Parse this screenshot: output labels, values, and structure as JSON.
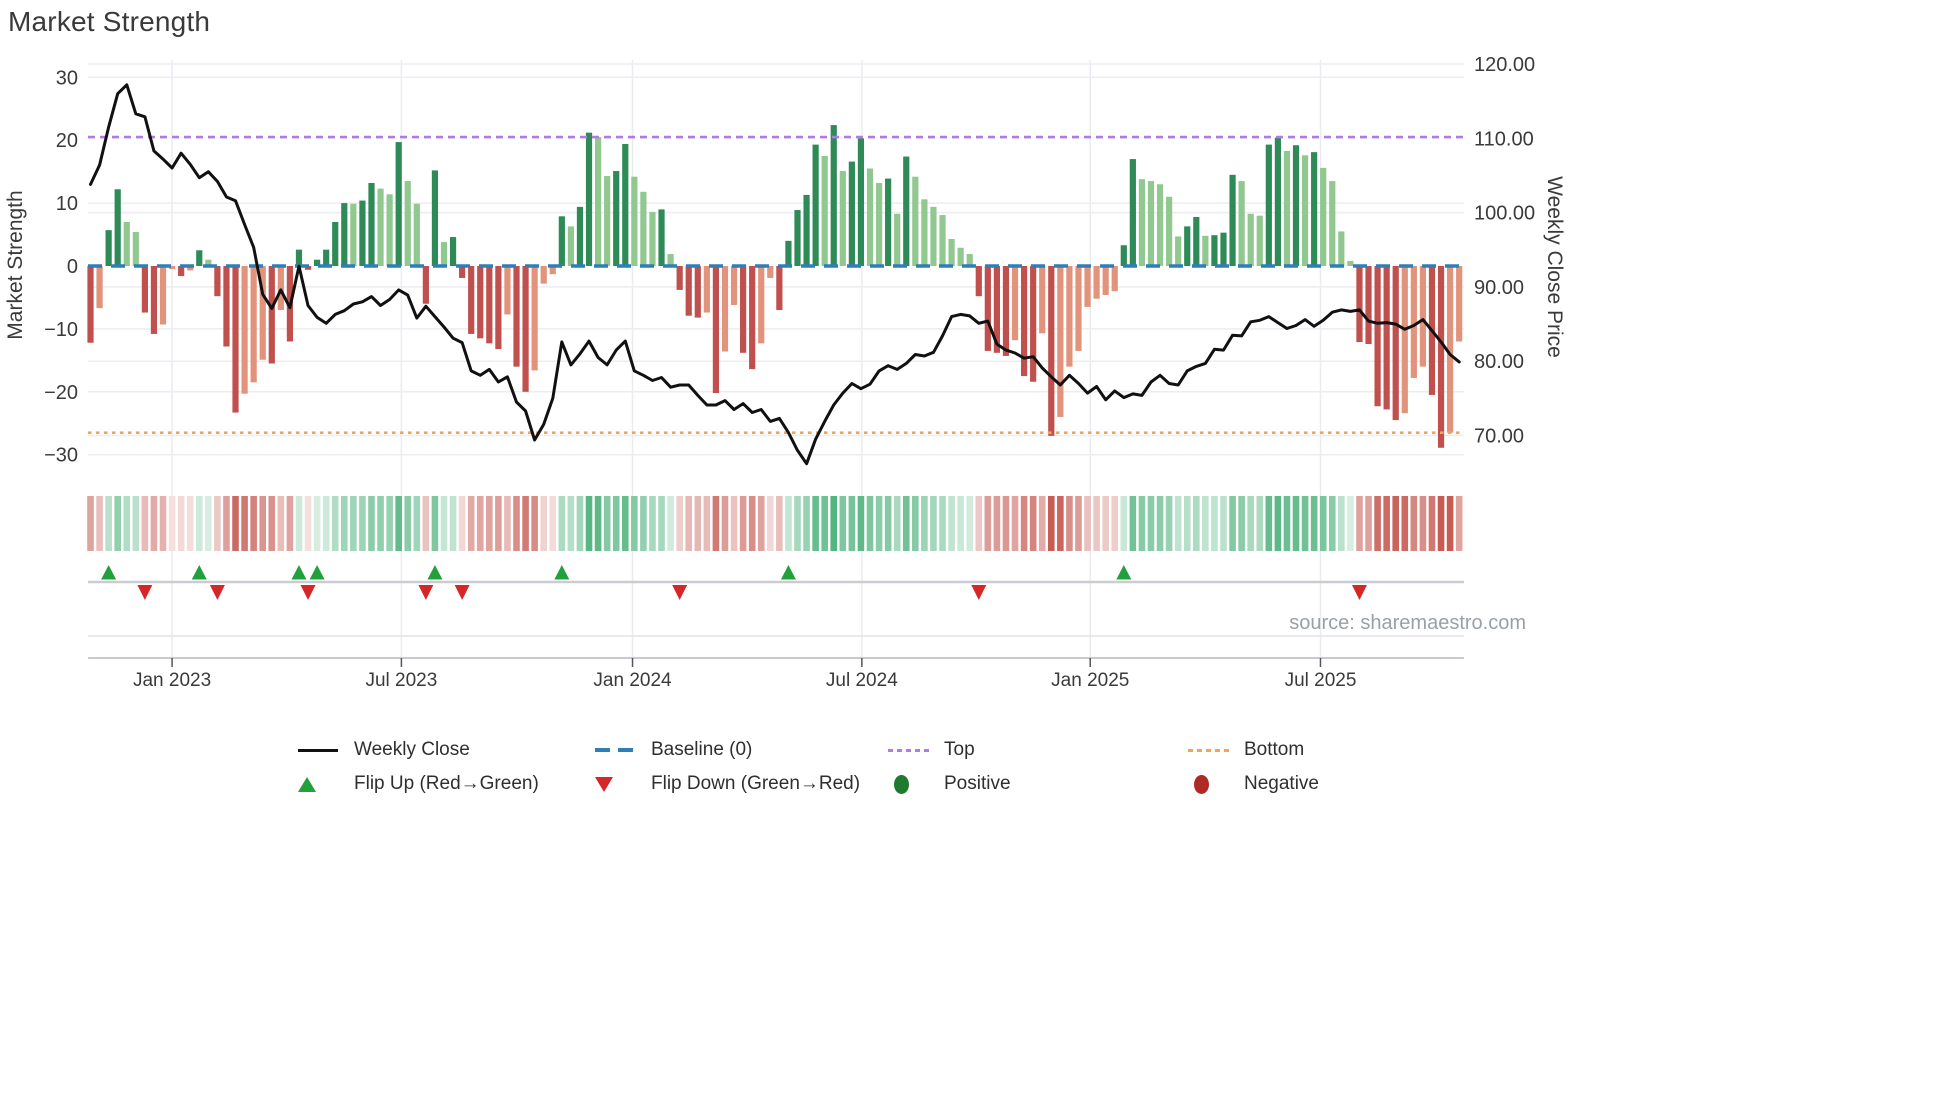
{
  "page": {
    "title": "Market Strength",
    "source": "source: sharemaestro.com"
  },
  "axes": {
    "left_label": "Market Strength",
    "right_label": "Weekly Close Price",
    "left_ticks": [
      "30",
      "20",
      "10",
      "0",
      "−10",
      "−20",
      "−30"
    ],
    "left_tick_values": [
      30,
      20,
      10,
      0,
      -10,
      -20,
      -30
    ],
    "right_ticks": [
      "120.00",
      "110.00",
      "100.00",
      "90.00",
      "80.00",
      "70.00"
    ],
    "right_tick_values": [
      120,
      110,
      100,
      90,
      80,
      70
    ],
    "x_ticks": [
      {
        "label": "Jan 2023",
        "week": 9
      },
      {
        "label": "Jul 2023",
        "week": 34.3
      },
      {
        "label": "Jan 2024",
        "week": 59.8
      },
      {
        "label": "Jul 2024",
        "week": 85.1
      },
      {
        "label": "Jan 2025",
        "week": 110.3
      },
      {
        "label": "Jul 2025",
        "week": 135.7
      }
    ]
  },
  "chart_data": {
    "type": "bar+line",
    "title": "Market Strength",
    "ylabel_left": "Market Strength",
    "ylabel_right": "Weekly Close Price",
    "ylim_left": [
      -32.5,
      32.5
    ],
    "ylim_right": [
      65.5,
      120.5
    ],
    "baseline": 0,
    "top_line": 20.5,
    "bottom_line": -26.5,
    "legend_position": "bottom",
    "grid": true,
    "strength": [
      -12.2,
      -6.7,
      5.7,
      12.2,
      7.0,
      5.4,
      -7.4,
      -10.8,
      -9.3,
      -0.5,
      -1.6,
      -0.7,
      2.5,
      1.0,
      -4.8,
      -12.8,
      -23.3,
      -20.3,
      -18.5,
      -14.9,
      -15.5,
      -7.0,
      -12.0,
      2.6,
      -0.6,
      1.0,
      2.6,
      7.0,
      10.0,
      9.9,
      10.4,
      13.2,
      12.3,
      11.4,
      19.7,
      13.5,
      9.9,
      -6.0,
      15.2,
      3.8,
      4.6,
      -1.9,
      -10.8,
      -11.5,
      -12.3,
      -13.2,
      -7.7,
      -16.0,
      -20.0,
      -16.6,
      -2.8,
      -1.3,
      7.9,
      6.3,
      9.4,
      21.2,
      20.5,
      14.3,
      15.1,
      19.4,
      14.2,
      11.8,
      8.6,
      9.0,
      1.9,
      -3.8,
      -7.9,
      -8.2,
      -7.4,
      -20.2,
      -13.6,
      -6.2,
      -13.8,
      -16.4,
      -12.3,
      -1.9,
      -7.0,
      4.0,
      8.9,
      11.3,
      19.3,
      17.5,
      22.4,
      15.1,
      16.6,
      20.3,
      15.5,
      13.2,
      13.9,
      8.3,
      17.4,
      14.2,
      10.6,
      9.4,
      8.1,
      4.3,
      2.9,
      1.9,
      -4.8,
      -13.5,
      -13.8,
      -14.3,
      -11.8,
      -17.5,
      -18.4,
      -10.7,
      -27.0,
      -24.0,
      -16.0,
      -13.5,
      -6.5,
      -5.2,
      -4.6,
      -4.0,
      3.3,
      17.0,
      13.8,
      13.5,
      13.0,
      11.0,
      4.7,
      6.3,
      7.8,
      4.8,
      4.9,
      5.3,
      14.5,
      13.5,
      8.3,
      8.0,
      19.3,
      20.4,
      18.3,
      19.2,
      17.6,
      18.1,
      15.6,
      13.5,
      5.5,
      0.8,
      -12.1,
      -12.4,
      -22.3,
      -22.8,
      -24.5,
      -23.4,
      -17.8,
      -16.0,
      -20.5,
      -28.9,
      -26.5,
      -12.0
    ],
    "weekly_close": [
      103.8,
      106.4,
      111.5,
      116.0,
      117.2,
      113.3,
      112.9,
      108.3,
      107.2,
      106.0,
      108.0,
      106.5,
      104.7,
      105.5,
      104.2,
      102.1,
      101.6,
      98.4,
      95.3,
      89.0,
      87.1,
      89.6,
      87.2,
      92.8,
      87.5,
      85.9,
      85.1,
      86.3,
      86.8,
      87.7,
      88.0,
      88.7,
      87.5,
      88.3,
      89.6,
      88.9,
      85.8,
      87.4,
      86.0,
      84.6,
      83.1,
      82.5,
      78.7,
      78.1,
      78.9,
      77.2,
      77.9,
      74.5,
      73.3,
      69.4,
      71.5,
      75.0,
      82.6,
      79.5,
      81.0,
      82.7,
      80.5,
      79.5,
      81.5,
      82.7,
      78.7,
      78.1,
      77.4,
      77.8,
      76.5,
      76.8,
      76.8,
      75.4,
      74.1,
      74.1,
      74.7,
      73.5,
      74.3,
      73.1,
      73.5,
      71.9,
      72.3,
      70.4,
      68.0,
      66.2,
      69.5,
      71.9,
      74.1,
      75.7,
      77.0,
      76.3,
      76.9,
      78.7,
      79.4,
      78.9,
      79.7,
      80.9,
      80.7,
      81.2,
      83.4,
      86.0,
      86.3,
      86.1,
      85.1,
      85.4,
      82.3,
      81.5,
      81.1,
      80.4,
      80.6,
      79.1,
      77.9,
      76.8,
      78.1,
      77.0,
      75.7,
      76.6,
      74.8,
      76.0,
      75.1,
      75.6,
      75.4,
      77.2,
      78.1,
      77.0,
      76.8,
      78.7,
      79.3,
      79.7,
      81.6,
      81.5,
      83.5,
      83.4,
      85.3,
      85.5,
      86.0,
      85.2,
      84.4,
      84.8,
      85.6,
      84.7,
      85.5,
      86.6,
      86.9,
      86.7,
      86.9,
      85.4,
      85.1,
      85.2,
      85.0,
      84.3,
      84.8,
      85.6,
      84.1,
      82.6,
      80.9,
      79.9
    ],
    "flip_up_weeks": [
      2,
      12,
      23,
      25,
      38,
      52,
      77,
      114
    ],
    "flip_down_weeks": [
      6,
      14,
      24,
      37,
      41,
      65,
      98,
      140
    ],
    "colors": {
      "bar_pos_rise": "#2e8b57",
      "bar_pos_fall": "#90c890",
      "bar_neg_fall": "#c0504d",
      "bar_neg_rise": "#e2937b",
      "baseline": "#2e7eb8",
      "top": "#b279e8",
      "bottom": "#f2a35e",
      "price_line": "#111111",
      "flip_up": "#22a03c",
      "flip_down": "#d62728",
      "positive_dot": "#1e7a2e",
      "negative_dot": "#b02a25",
      "heat_pos": [
        60,
        170,
        110
      ],
      "heat_neg": [
        198,
        92,
        84
      ]
    }
  },
  "legend": {
    "items": [
      {
        "swatch": "line",
        "color": "#111111",
        "label": "Weekly Close"
      },
      {
        "swatch": "dashes",
        "color": "#2e7eb8",
        "label": "Baseline (0)"
      },
      {
        "swatch": "dots",
        "color": "#b279e8",
        "label": "Top"
      },
      {
        "swatch": "dots",
        "color": "#f2a35e",
        "label": "Bottom"
      },
      {
        "swatch": "tri-up",
        "color": "#22a03c",
        "label": "Flip Up (Red→Green)"
      },
      {
        "swatch": "tri-down",
        "color": "#d62728",
        "label": "Flip Down (Green→Red)"
      },
      {
        "swatch": "circle",
        "color": "#1e7a2e",
        "label": "Positive"
      },
      {
        "swatch": "circle",
        "color": "#b02a25",
        "label": "Negative"
      }
    ]
  }
}
